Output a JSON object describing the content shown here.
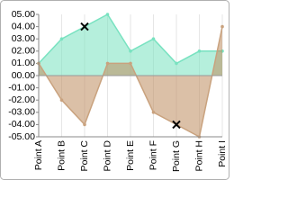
{
  "chart_data": {
    "type": "area",
    "categories": [
      "Point A",
      "Point B",
      "Point C",
      "Point D",
      "Point E",
      "Point F",
      "Point G",
      "Point H",
      "Point I"
    ],
    "series": [
      {
        "color": "#78e2c0",
        "fill": "rgba(120,226,192,0.55)",
        "values": [
          1,
          3,
          4,
          5,
          2,
          3,
          1,
          2,
          2
        ],
        "marked_index": 2
      },
      {
        "color": "#c9a27e",
        "fill": "rgba(190,140,95,0.55)",
        "values": [
          1,
          -2,
          -4,
          1,
          1,
          -3,
          -4,
          -5,
          4
        ],
        "marked_index": 6
      }
    ],
    "ylim": [
      -5,
      5
    ],
    "yticks": [
      {
        "value": 5,
        "label": "05.00"
      },
      {
        "value": 4,
        "label": "04.00"
      },
      {
        "value": 3,
        "label": "03.00"
      },
      {
        "value": 2,
        "label": "02.00"
      },
      {
        "value": 1,
        "label": "01.00"
      },
      {
        "value": 0,
        "label": "00.00"
      },
      {
        "value": -1,
        "label": "-01.00"
      },
      {
        "value": -2,
        "label": "-02.00"
      },
      {
        "value": -3,
        "label": "-03.00"
      },
      {
        "value": -4,
        "label": "-04.00"
      },
      {
        "value": -5,
        "label": "-05.00"
      }
    ],
    "grid": true
  }
}
